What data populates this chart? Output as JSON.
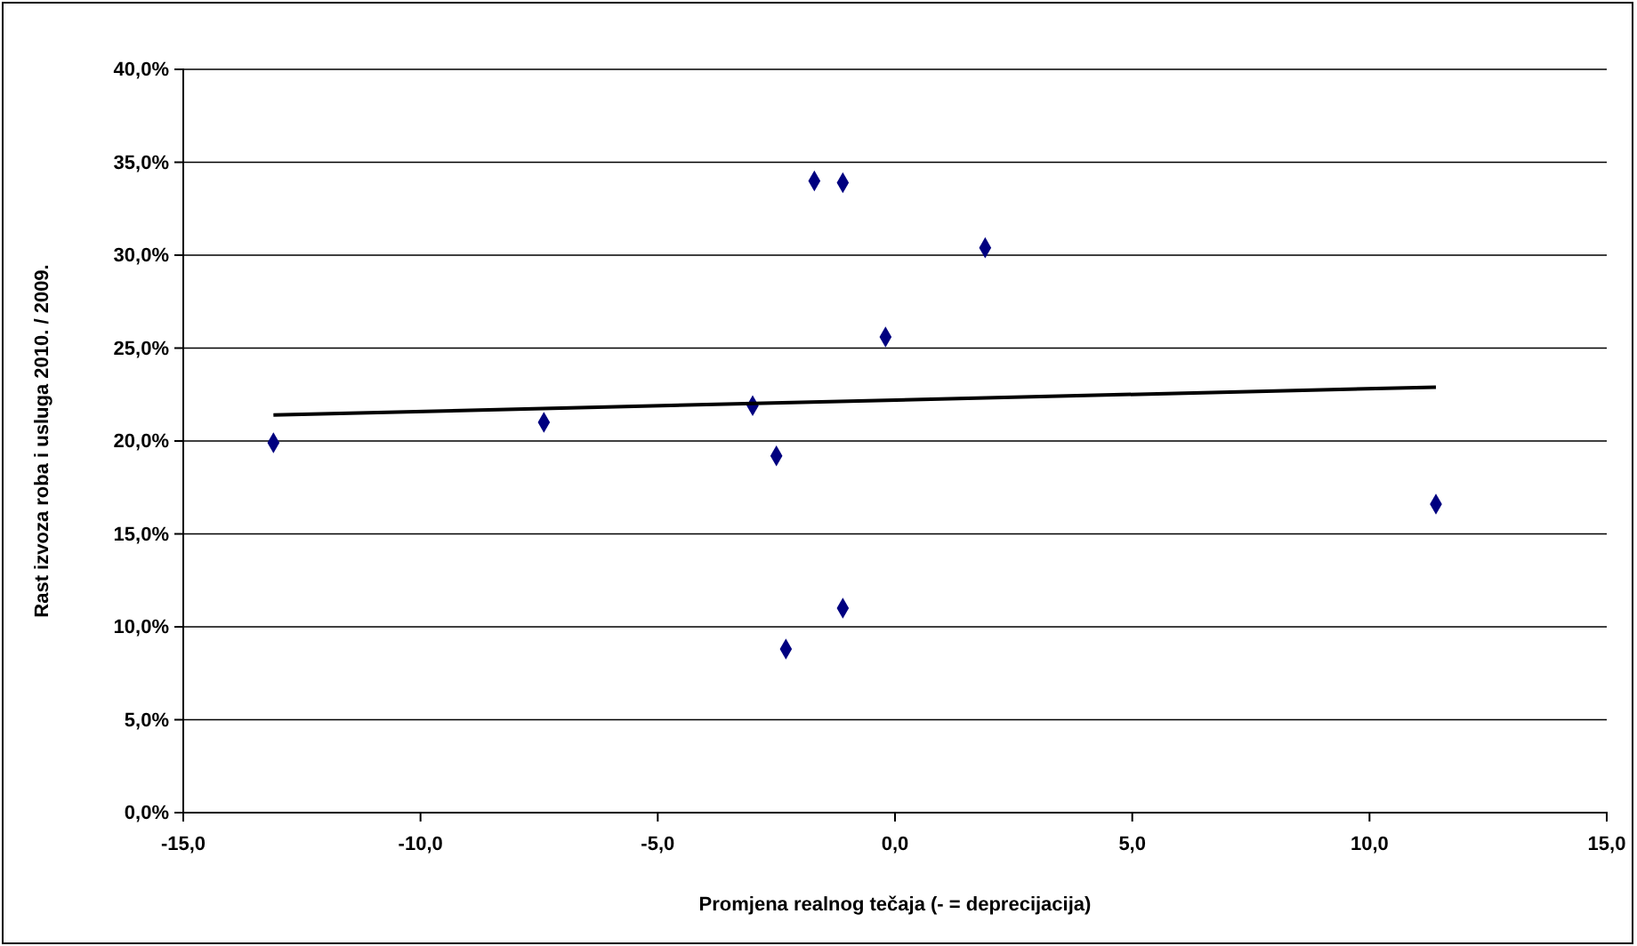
{
  "chart_data": {
    "type": "scatter",
    "xlabel": "Promjena realnog tečaja (- = deprecijacija)",
    "ylabel": "Rast izvoza roba i usluga 2010. / 2009.",
    "xlim": [
      -15,
      15
    ],
    "ylim": [
      0,
      40
    ],
    "xticks": [
      {
        "value": -15,
        "label": "-15,0"
      },
      {
        "value": -10,
        "label": "-10,0"
      },
      {
        "value": -5,
        "label": "-5,0"
      },
      {
        "value": 0,
        "label": "0,0"
      },
      {
        "value": 5,
        "label": "5,0"
      },
      {
        "value": 10,
        "label": "10,0"
      },
      {
        "value": 15,
        "label": "15,0"
      }
    ],
    "yticks": [
      {
        "value": 0,
        "label": "0,0%"
      },
      {
        "value": 5,
        "label": "5,0%"
      },
      {
        "value": 10,
        "label": "10,0%"
      },
      {
        "value": 15,
        "label": "15,0%"
      },
      {
        "value": 20,
        "label": "20,0%"
      },
      {
        "value": 25,
        "label": "25,0%"
      },
      {
        "value": 30,
        "label": "30,0%"
      },
      {
        "value": 35,
        "label": "35,0%"
      },
      {
        "value": 40,
        "label": "40,0%"
      }
    ],
    "grid": "y",
    "marker": "diamond",
    "series": [
      {
        "color": "#000080",
        "x": [
          -13.1,
          -7.4,
          -3.0,
          -2.5,
          -2.3,
          -1.7,
          -1.1,
          -1.1,
          -0.2,
          1.9,
          11.4
        ],
        "values": [
          19.9,
          21.0,
          21.9,
          19.2,
          8.8,
          34.0,
          33.9,
          11.0,
          25.6,
          30.4,
          16.6
        ]
      },
      {
        "type": "line",
        "color": "#000000",
        "x": [
          -13.1,
          11.4
        ],
        "values": [
          21.4,
          22.9
        ],
        "marker": "none",
        "line_style": "solid"
      }
    ]
  }
}
